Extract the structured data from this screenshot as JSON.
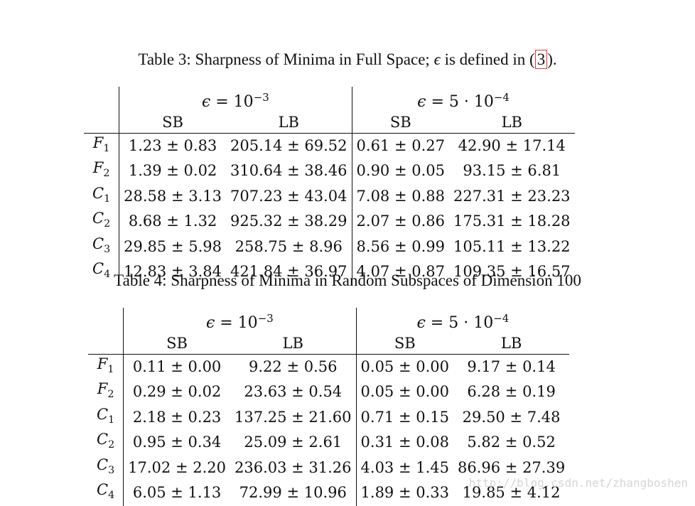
{
  "table3": {
    "caption_prefix": "Table 3: Sharpness of Minima in Full Space; ",
    "caption_epsilon": "ϵ",
    "caption_mid": " is defined in (",
    "caption_ref": "3",
    "caption_suffix": ").",
    "group1": {
      "symbol": "ϵ",
      "eq": " = 10",
      "exp": "−3"
    },
    "group2": {
      "symbol": "ϵ",
      "eq": " = 5 · 10",
      "exp": "−4"
    },
    "col_headers": [
      "SB",
      "LB",
      "SB",
      "LB"
    ],
    "rows": [
      {
        "base": "F",
        "sub": "1",
        "cells": [
          "1.23 ± 0.83",
          "205.14 ± 69.52",
          "0.61 ± 0.27",
          "42.90 ± 17.14"
        ]
      },
      {
        "base": "F",
        "sub": "2",
        "cells": [
          "1.39 ± 0.02",
          "310.64 ± 38.46",
          "0.90 ± 0.05",
          "93.15 ± 6.81"
        ]
      },
      {
        "base": "C",
        "sub": "1",
        "cells": [
          "28.58 ± 3.13",
          "707.23 ± 43.04",
          "7.08 ± 0.88",
          "227.31 ± 23.23"
        ]
      },
      {
        "base": "C",
        "sub": "2",
        "cells": [
          "8.68 ± 1.32",
          "925.32 ± 38.29",
          "2.07 ± 0.86",
          "175.31 ± 18.28"
        ]
      },
      {
        "base": "C",
        "sub": "3",
        "cells": [
          "29.85 ± 5.98",
          "258.75 ± 8.96",
          "8.56 ± 0.99",
          "105.11 ± 13.22"
        ]
      },
      {
        "base": "C",
        "sub": "4",
        "cells": [
          "12.83 ± 3.84",
          "421.84 ± 36.97",
          "4.07 ± 0.87",
          "109.35 ± 16.57"
        ]
      }
    ]
  },
  "table4": {
    "caption": "Table 4: Sharpness of Minima in Random Subspaces of Dimension 100",
    "group1": {
      "symbol": "ϵ",
      "eq": " = 10",
      "exp": "−3"
    },
    "group2": {
      "symbol": "ϵ",
      "eq": " = 5 · 10",
      "exp": "−4"
    },
    "col_headers": [
      "SB",
      "LB",
      "SB",
      "LB"
    ],
    "rows": [
      {
        "base": "F",
        "sub": "1",
        "cells": [
          "0.11 ± 0.00",
          "9.22 ± 0.56",
          "0.05 ± 0.00",
          "9.17 ± 0.14"
        ]
      },
      {
        "base": "F",
        "sub": "2",
        "cells": [
          "0.29 ± 0.02",
          "23.63 ± 0.54",
          "0.05 ± 0.00",
          "6.28 ± 0.19"
        ]
      },
      {
        "base": "C",
        "sub": "1",
        "cells": [
          "2.18 ± 0.23",
          "137.25 ± 21.60",
          "0.71 ± 0.15",
          "29.50 ± 7.48"
        ]
      },
      {
        "base": "C",
        "sub": "2",
        "cells": [
          "0.95 ± 0.34",
          "25.09 ± 2.61",
          "0.31 ± 0.08",
          "5.82 ± 0.52"
        ]
      },
      {
        "base": "C",
        "sub": "3",
        "cells": [
          "17.02 ± 2.20",
          "236.03 ± 31.26",
          "4.03 ± 1.45",
          "86.96 ± 27.39"
        ]
      },
      {
        "base": "C",
        "sub": "4",
        "cells": [
          "6.05 ± 1.13",
          "72.99 ± 10.96",
          "1.89 ± 0.33",
          "19.85 ± 4.12"
        ]
      }
    ]
  },
  "watermark": "http://blog.csdn.net/zhangboshen"
}
